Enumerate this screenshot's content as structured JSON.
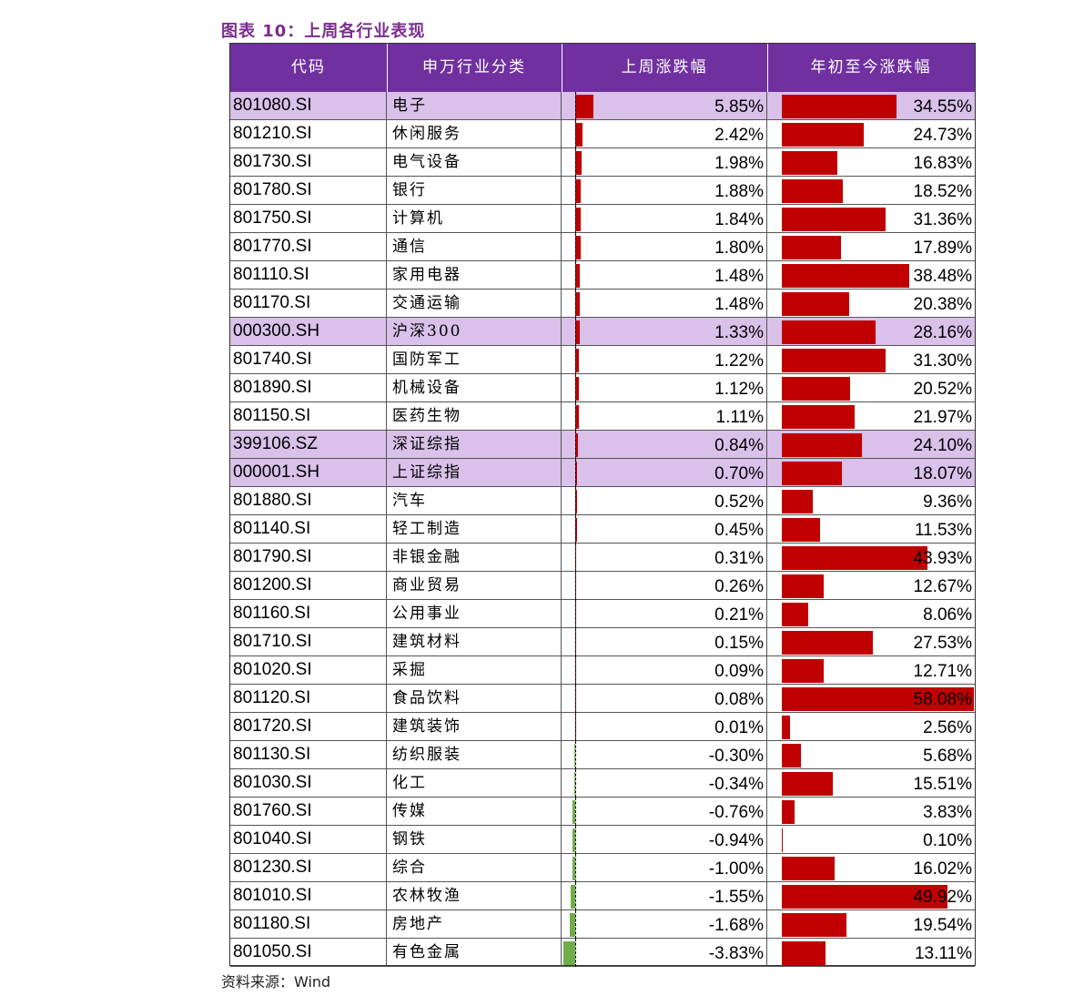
{
  "title": "图表 10：上周各行业表现",
  "source": "资料来源：Wind",
  "colors": {
    "header_bg": "#7030a0",
    "title": "#7b2d8e",
    "highlight_row": "#d9c1ea",
    "bar_positive": "#c00000",
    "bar_negative": "#70ad47"
  },
  "chart_data": {
    "type": "table",
    "columns": [
      "代码",
      "申万行业分类",
      "上周涨跌幅",
      "年初至今涨跌幅"
    ],
    "rows": [
      {
        "code": "801080.SI",
        "industry": "电子",
        "week": "5.85%",
        "ytd": "34.55%",
        "highlight": true
      },
      {
        "code": "801210.SI",
        "industry": "休闲服务",
        "week": "2.42%",
        "ytd": "24.73%",
        "highlight": false
      },
      {
        "code": "801730.SI",
        "industry": "电气设备",
        "week": "1.98%",
        "ytd": "16.83%",
        "highlight": false
      },
      {
        "code": "801780.SI",
        "industry": "银行",
        "week": "1.88%",
        "ytd": "18.52%",
        "highlight": false
      },
      {
        "code": "801750.SI",
        "industry": "计算机",
        "week": "1.84%",
        "ytd": "31.36%",
        "highlight": false
      },
      {
        "code": "801770.SI",
        "industry": "通信",
        "week": "1.80%",
        "ytd": "17.89%",
        "highlight": false
      },
      {
        "code": "801110.SI",
        "industry": "家用电器",
        "week": "1.48%",
        "ytd": "38.48%",
        "highlight": false
      },
      {
        "code": "801170.SI",
        "industry": "交通运输",
        "week": "1.48%",
        "ytd": "20.38%",
        "highlight": false
      },
      {
        "code": "000300.SH",
        "industry": "沪深300",
        "week": "1.33%",
        "ytd": "28.16%",
        "highlight": true
      },
      {
        "code": "801740.SI",
        "industry": "国防军工",
        "week": "1.22%",
        "ytd": "31.30%",
        "highlight": false
      },
      {
        "code": "801890.SI",
        "industry": "机械设备",
        "week": "1.12%",
        "ytd": "20.52%",
        "highlight": false
      },
      {
        "code": "801150.SI",
        "industry": "医药生物",
        "week": "1.11%",
        "ytd": "21.97%",
        "highlight": false
      },
      {
        "code": "399106.SZ",
        "industry": "深证综指",
        "week": "0.84%",
        "ytd": "24.10%",
        "highlight": true
      },
      {
        "code": "000001.SH",
        "industry": "上证综指",
        "week": "0.70%",
        "ytd": "18.07%",
        "highlight": true
      },
      {
        "code": "801880.SI",
        "industry": "汽车",
        "week": "0.52%",
        "ytd": "9.36%",
        "highlight": false
      },
      {
        "code": "801140.SI",
        "industry": "轻工制造",
        "week": "0.45%",
        "ytd": "11.53%",
        "highlight": false
      },
      {
        "code": "801790.SI",
        "industry": "非银金融",
        "week": "0.31%",
        "ytd": "43.93%",
        "highlight": false
      },
      {
        "code": "801200.SI",
        "industry": "商业贸易",
        "week": "0.26%",
        "ytd": "12.67%",
        "highlight": false
      },
      {
        "code": "801160.SI",
        "industry": "公用事业",
        "week": "0.21%",
        "ytd": "8.06%",
        "highlight": false
      },
      {
        "code": "801710.SI",
        "industry": "建筑材料",
        "week": "0.15%",
        "ytd": "27.53%",
        "highlight": false
      },
      {
        "code": "801020.SI",
        "industry": "采掘",
        "week": "0.09%",
        "ytd": "12.71%",
        "highlight": false
      },
      {
        "code": "801120.SI",
        "industry": "食品饮料",
        "week": "0.08%",
        "ytd": "58.08%",
        "highlight": false
      },
      {
        "code": "801720.SI",
        "industry": "建筑装饰",
        "week": "0.01%",
        "ytd": "2.56%",
        "highlight": false
      },
      {
        "code": "801130.SI",
        "industry": "纺织服装",
        "week": "-0.30%",
        "ytd": "5.68%",
        "highlight": false
      },
      {
        "code": "801030.SI",
        "industry": "化工",
        "week": "-0.34%",
        "ytd": "15.51%",
        "highlight": false
      },
      {
        "code": "801760.SI",
        "industry": "传媒",
        "week": "-0.76%",
        "ytd": "3.83%",
        "highlight": false
      },
      {
        "code": "801040.SI",
        "industry": "钢铁",
        "week": "-0.94%",
        "ytd": "0.10%",
        "highlight": false
      },
      {
        "code": "801230.SI",
        "industry": "综合",
        "week": "-1.00%",
        "ytd": "16.02%",
        "highlight": false
      },
      {
        "code": "801010.SI",
        "industry": "农林牧渔",
        "week": "-1.55%",
        "ytd": "49.92%",
        "highlight": false
      },
      {
        "code": "801180.SI",
        "industry": "房地产",
        "week": "-1.68%",
        "ytd": "19.54%",
        "highlight": false
      },
      {
        "code": "801050.SI",
        "industry": "有色金属",
        "week": "-3.83%",
        "ytd": "13.11%",
        "highlight": false
      }
    ]
  }
}
